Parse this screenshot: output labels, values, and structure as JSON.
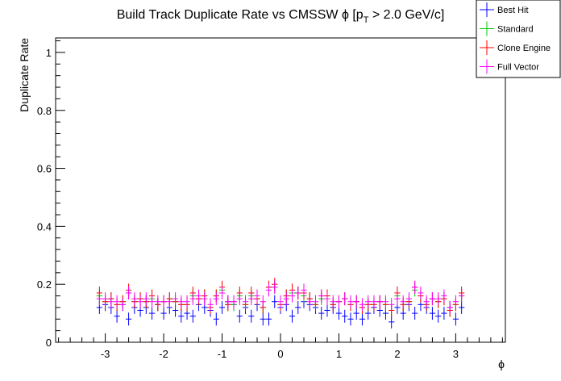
{
  "chart_data": {
    "type": "scatter",
    "title": "Build Track Duplicate Rate vs CMSSW ϕ [p_T > 2.0 GeV/c]",
    "title_main": "Build Track Duplicate Rate vs CMSSW ",
    "title_phi": "ϕ",
    "title_bracket": " [p",
    "title_sub": "T",
    "title_tail": " > 2.0 GeV/c]",
    "xlabel": "ϕ",
    "ylabel": "Duplicate Rate",
    "xlim": [
      -3.85,
      3.85
    ],
    "ylim": [
      0,
      1.05
    ],
    "xticks": [
      -3,
      -2,
      -1,
      0,
      1,
      2,
      3
    ],
    "xtick_labels": [
      "-3",
      "-2",
      "-1",
      "0",
      "1",
      "2",
      "3"
    ],
    "yticks": [
      0,
      0.2,
      0.4,
      0.6,
      0.8,
      1
    ],
    "ytick_labels": [
      "0",
      "0.2",
      "0.4",
      "0.6",
      "0.8",
      "1"
    ],
    "legend_position": "top-right",
    "grid": false,
    "x": [
      -3.1,
      -3.0,
      -2.9,
      -2.8,
      -2.7,
      -2.6,
      -2.5,
      -2.4,
      -2.3,
      -2.2,
      -2.1,
      -2.0,
      -1.9,
      -1.8,
      -1.7,
      -1.6,
      -1.5,
      -1.4,
      -1.3,
      -1.2,
      -1.1,
      -1.0,
      -0.9,
      -0.8,
      -0.7,
      -0.6,
      -0.5,
      -0.4,
      -0.3,
      -0.2,
      -0.1,
      0.0,
      0.1,
      0.2,
      0.3,
      0.4,
      0.5,
      0.6,
      0.7,
      0.8,
      0.9,
      1.0,
      1.1,
      1.2,
      1.3,
      1.4,
      1.5,
      1.6,
      1.7,
      1.8,
      1.9,
      2.0,
      2.1,
      2.2,
      2.3,
      2.4,
      2.5,
      2.6,
      2.7,
      2.8,
      2.9,
      3.0,
      3.1
    ],
    "series": [
      {
        "name": "Best Hit",
        "color": "#0000ff",
        "values": [
          0.12,
          0.13,
          0.12,
          0.09,
          0.13,
          0.08,
          0.12,
          0.11,
          0.12,
          0.1,
          0.13,
          0.1,
          0.12,
          0.11,
          0.09,
          0.1,
          0.09,
          0.13,
          0.12,
          0.11,
          0.08,
          0.12,
          0.14,
          0.13,
          0.09,
          0.12,
          0.09,
          0.13,
          0.08,
          0.08,
          0.14,
          0.12,
          0.13,
          0.09,
          0.12,
          0.14,
          0.13,
          0.12,
          0.1,
          0.11,
          0.12,
          0.1,
          0.09,
          0.08,
          0.1,
          0.08,
          0.1,
          0.12,
          0.11,
          0.1,
          0.07,
          0.12,
          0.1,
          0.13,
          0.1,
          0.13,
          0.12,
          0.1,
          0.09,
          0.1,
          0.12,
          0.08,
          0.12
        ]
      },
      {
        "name": "Standard",
        "color": "#00cc00",
        "values": [
          0.16,
          0.14,
          0.15,
          0.13,
          0.14,
          0.17,
          0.14,
          0.15,
          0.14,
          0.15,
          0.13,
          0.14,
          0.15,
          0.14,
          0.13,
          0.13,
          0.16,
          0.15,
          0.16,
          0.12,
          0.16,
          0.18,
          0.13,
          0.13,
          0.16,
          0.13,
          0.16,
          0.15,
          0.12,
          0.19,
          0.19,
          0.13,
          0.16,
          0.17,
          0.17,
          0.16,
          0.15,
          0.13,
          0.15,
          0.16,
          0.13,
          0.14,
          0.15,
          0.13,
          0.14,
          0.12,
          0.13,
          0.13,
          0.14,
          0.13,
          0.11,
          0.16,
          0.13,
          0.14,
          0.18,
          0.16,
          0.13,
          0.15,
          0.14,
          0.15,
          0.11,
          0.13,
          0.16
        ]
      },
      {
        "name": "Clone Engine",
        "color": "#ff0000",
        "values": [
          0.17,
          0.14,
          0.15,
          0.13,
          0.14,
          0.18,
          0.14,
          0.15,
          0.14,
          0.16,
          0.13,
          0.14,
          0.15,
          0.14,
          0.13,
          0.13,
          0.17,
          0.15,
          0.16,
          0.12,
          0.16,
          0.19,
          0.13,
          0.14,
          0.17,
          0.13,
          0.17,
          0.15,
          0.12,
          0.19,
          0.2,
          0.13,
          0.16,
          0.18,
          0.17,
          0.17,
          0.15,
          0.13,
          0.16,
          0.16,
          0.13,
          0.14,
          0.15,
          0.13,
          0.14,
          0.12,
          0.13,
          0.13,
          0.14,
          0.13,
          0.11,
          0.17,
          0.13,
          0.14,
          0.19,
          0.16,
          0.13,
          0.15,
          0.14,
          0.15,
          0.11,
          0.13,
          0.17
        ]
      },
      {
        "name": "Full Vector",
        "color": "#ff00ff",
        "values": [
          0.15,
          0.15,
          0.14,
          0.14,
          0.13,
          0.17,
          0.15,
          0.14,
          0.15,
          0.14,
          0.14,
          0.14,
          0.14,
          0.15,
          0.14,
          0.14,
          0.15,
          0.16,
          0.15,
          0.13,
          0.15,
          0.17,
          0.14,
          0.14,
          0.15,
          0.14,
          0.15,
          0.16,
          0.14,
          0.18,
          0.19,
          0.14,
          0.15,
          0.16,
          0.17,
          0.18,
          0.14,
          0.14,
          0.16,
          0.15,
          0.14,
          0.14,
          0.15,
          0.14,
          0.14,
          0.13,
          0.14,
          0.14,
          0.14,
          0.14,
          0.13,
          0.15,
          0.14,
          0.15,
          0.19,
          0.17,
          0.14,
          0.15,
          0.15,
          0.16,
          0.12,
          0.14,
          0.16
        ]
      }
    ]
  }
}
